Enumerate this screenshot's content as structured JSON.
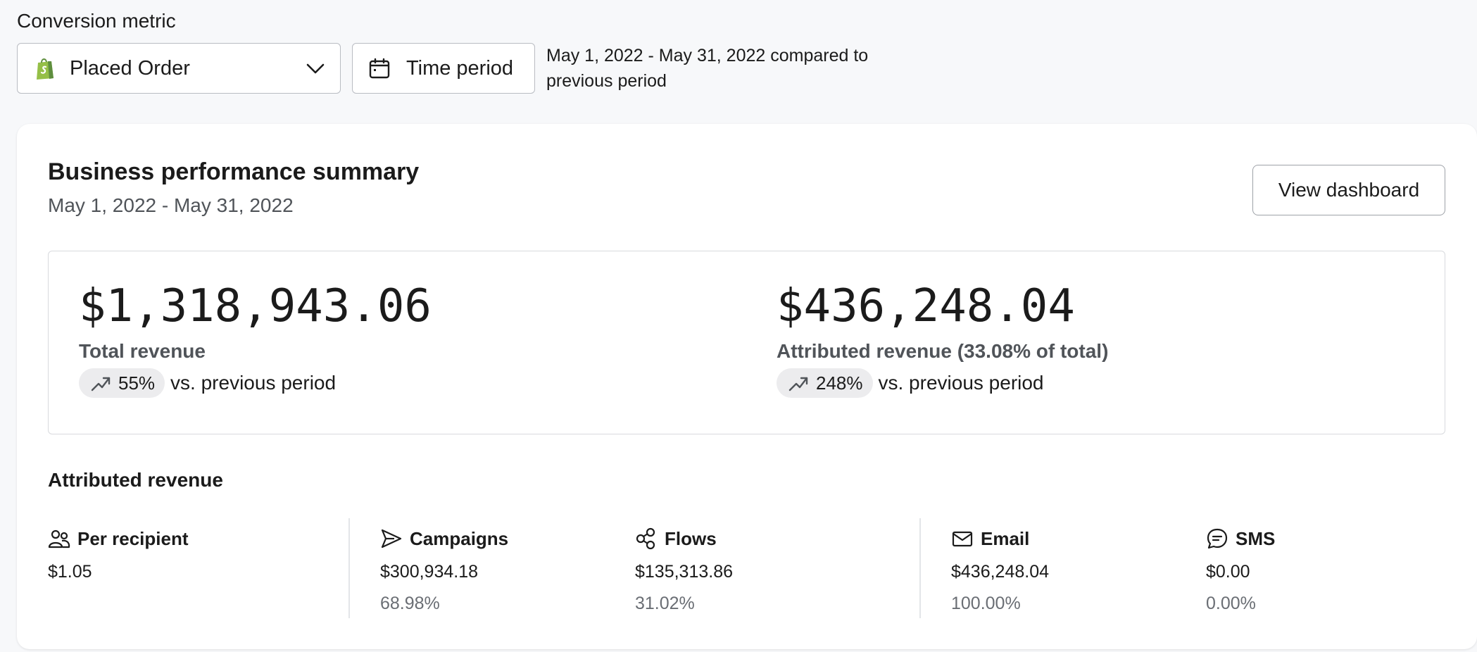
{
  "header": {
    "metric_label": "Conversion metric",
    "metric_select_value": "Placed Order",
    "time_period_label": "Time period",
    "compare_text": "May 1, 2022 - May 31, 2022 compared to previous period"
  },
  "card": {
    "title": "Business performance summary",
    "date_range": "May 1, 2022 - May 31, 2022",
    "view_dashboard_label": "View dashboard",
    "total": {
      "value": "$1,318,943.06",
      "label": "Total revenue",
      "change": "55%",
      "change_suffix": "vs. previous period"
    },
    "attributed": {
      "value": "$436,248.04",
      "label": "Attributed revenue (33.08% of total)",
      "change": "248%",
      "change_suffix": "vs. previous period"
    },
    "attributed_section_title": "Attributed revenue",
    "metrics": [
      {
        "label": "Per recipient",
        "icon": "people-icon",
        "value": "$1.05",
        "percent": ""
      },
      {
        "label": "Campaigns",
        "icon": "send-icon",
        "value": "$300,934.18",
        "percent": "68.98%"
      },
      {
        "label": "Flows",
        "icon": "flow-icon",
        "value": "$135,313.86",
        "percent": "31.02%"
      },
      {
        "label": "Email",
        "icon": "mail-icon",
        "value": "$436,248.04",
        "percent": "100.00%"
      },
      {
        "label": "SMS",
        "icon": "chat-icon",
        "value": "$0.00",
        "percent": "0.00%"
      }
    ]
  },
  "colors": {
    "page_bg": "#f7f8fa",
    "card_bg": "#ffffff",
    "pill_bg": "#ececee",
    "shopify_green": "#95bf47"
  }
}
